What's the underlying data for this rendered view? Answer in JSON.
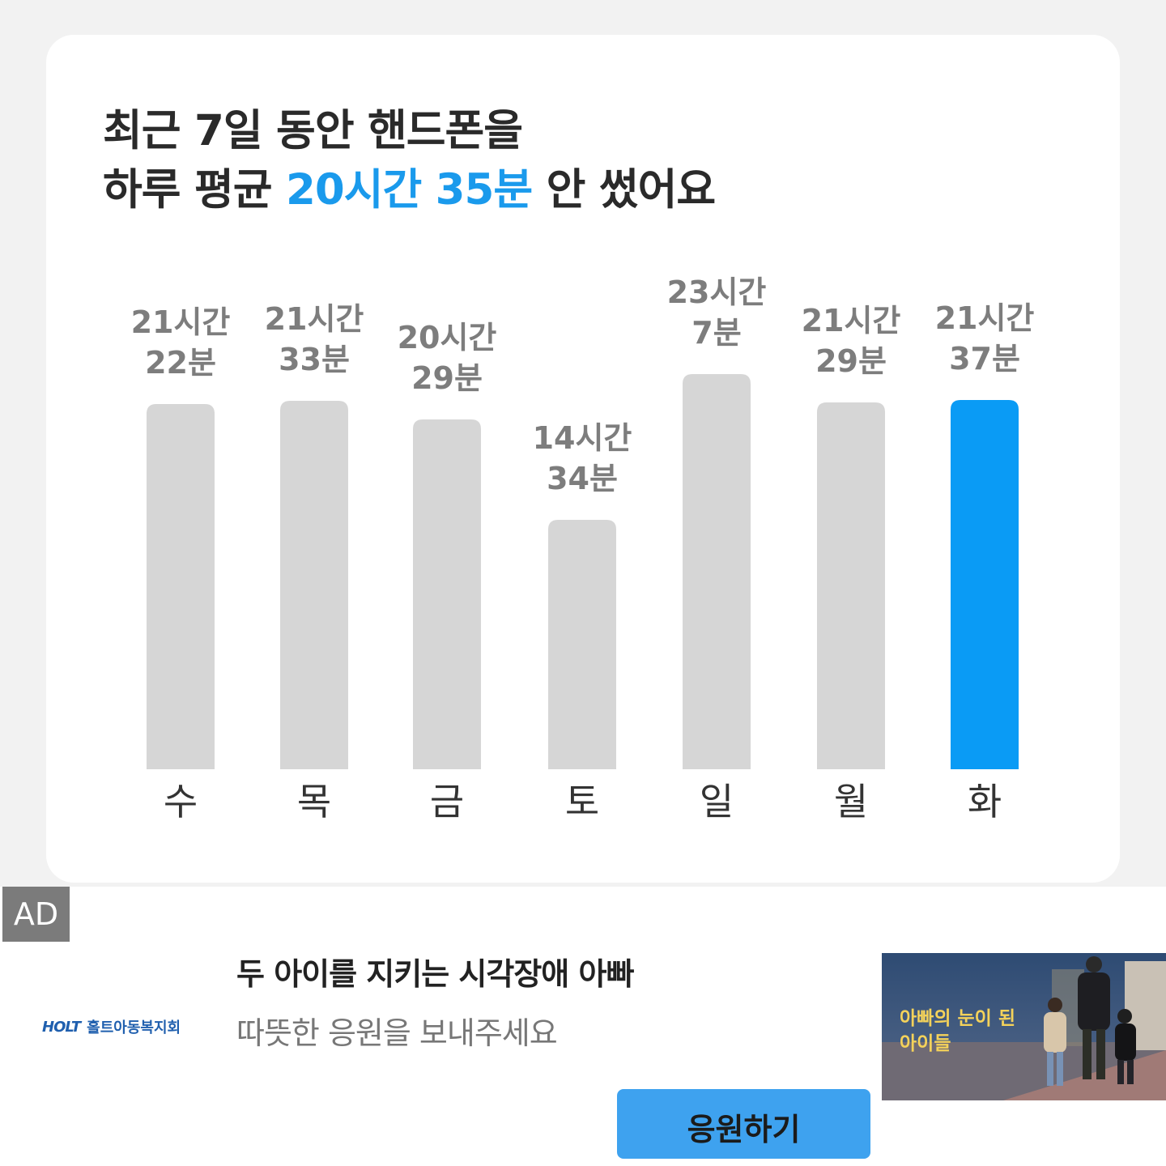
{
  "headline": {
    "line1": "최근 7일 동안 핸드폰을",
    "line2_prefix": "하루 평균 ",
    "line2_highlight": "20시간 35분",
    "line2_suffix": " 안 썼어요"
  },
  "chart_data": {
    "type": "bar",
    "categories": [
      "수",
      "목",
      "금",
      "토",
      "일",
      "월",
      "화"
    ],
    "values": [
      21.37,
      21.55,
      20.48,
      14.57,
      23.12,
      21.48,
      21.62
    ],
    "labels": [
      [
        "21시간",
        "22분"
      ],
      [
        "21시간",
        "33분"
      ],
      [
        "20시간",
        "29분"
      ],
      [
        "14시간",
        "34분"
      ],
      [
        "23시간",
        "7분"
      ],
      [
        "21시간",
        "29분"
      ],
      [
        "21시간",
        "37분"
      ]
    ],
    "highlight_index": 6,
    "colors": {
      "bar": "#d6d6d6",
      "highlight": "#0a9bf5",
      "label": "#7d7d7d",
      "category": "#333333"
    },
    "ylim": [
      0,
      23.12
    ]
  },
  "ad": {
    "badge": "AD",
    "org_name": "홀트아동복지회",
    "org_mark": "HOLT",
    "title": "두 아이를 지키는 시각장애 아빠",
    "subtitle": "따뜻한 응원을 보내주세요",
    "image_caption_line1": "아빠의 눈이 된",
    "image_caption_line2": "아이들",
    "cta_label": "응원하기"
  }
}
